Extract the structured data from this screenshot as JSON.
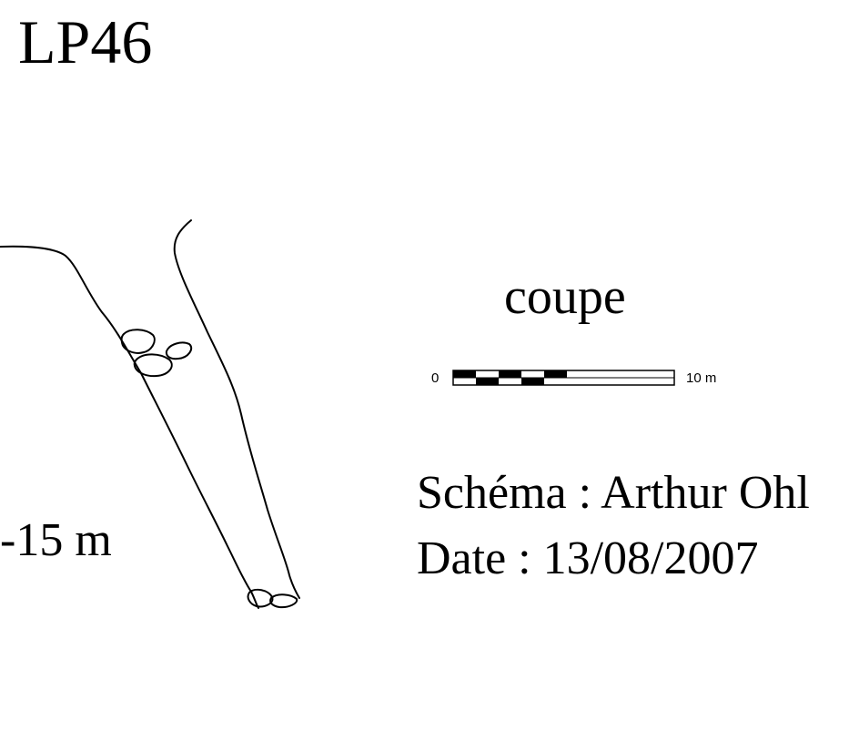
{
  "title": "LP46",
  "view_label": "coupe",
  "depth_label": "-15 m",
  "scale": {
    "start_label": "0",
    "end_label": "10 m"
  },
  "credits": {
    "author_line": "Schéma : Arthur Ohl",
    "date_line": "Date : 13/08/2007"
  },
  "colors": {
    "ink": "#000000",
    "paper": "#ffffff"
  }
}
